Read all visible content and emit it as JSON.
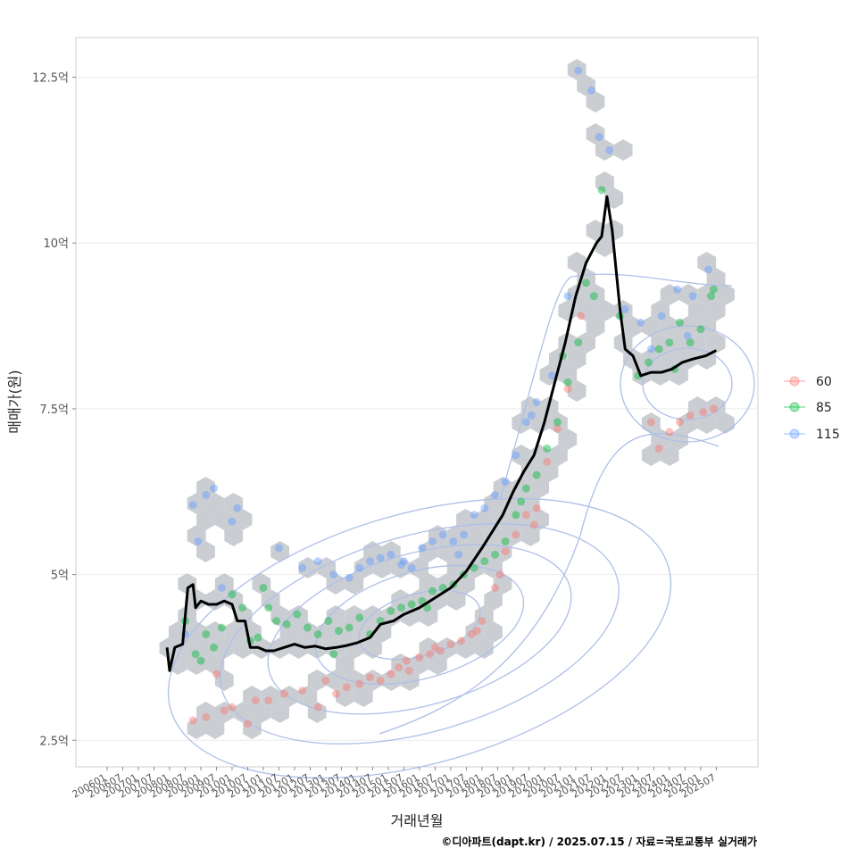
{
  "chart_data": {
    "type": "scatter",
    "xlabel": "거래년월",
    "ylabel": "매매가(원)",
    "caption": "©디아파트(dapt.kr) / 2025.07.15 / 자료=국토교통부 실거래가",
    "x_ticks": [
      "200601",
      "200607",
      "200701",
      "200707",
      "200801",
      "200807",
      "200901",
      "200907",
      "201001",
      "201007",
      "201101",
      "201107",
      "201201",
      "201207",
      "201301",
      "201307",
      "201401",
      "201407",
      "201501",
      "201507",
      "201601",
      "201607",
      "201701",
      "201707",
      "201801",
      "201807",
      "201901",
      "201907",
      "202001",
      "202007",
      "202101",
      "202107",
      "202201",
      "202207",
      "202301",
      "202307",
      "202401",
      "202407",
      "202501",
      "202507"
    ],
    "y_ticks": [
      {
        "value": 2.5,
        "label": "2.5억"
      },
      {
        "value": 5,
        "label": "5억"
      },
      {
        "value": 7.5,
        "label": "7.5억"
      },
      {
        "value": 10,
        "label": "10억"
      },
      {
        "value": 12.5,
        "label": "12.5억"
      }
    ],
    "ylim": [
      2.1,
      13.1
    ],
    "xlim": [
      "2005-01",
      "2026-11"
    ],
    "grid": true,
    "legend": {
      "position": "right",
      "entries": [
        {
          "name": "60",
          "color": "#F8766D"
        },
        {
          "name": "85",
          "color": "#00BA38"
        },
        {
          "name": "115",
          "color": "#619CFF"
        }
      ]
    },
    "layers": [
      "hexbin density (gray)",
      "2D density contours (blue)",
      "transactions by area",
      "trend line (black)"
    ],
    "trend_line": [
      [
        "2007-12",
        3.9
      ],
      [
        "2008-01",
        3.55
      ],
      [
        "2008-03",
        3.9
      ],
      [
        "2008-06",
        3.95
      ],
      [
        "2008-08",
        4.8
      ],
      [
        "2008-10",
        4.85
      ],
      [
        "2008-11",
        4.5
      ],
      [
        "2009-01",
        4.6
      ],
      [
        "2009-04",
        4.55
      ],
      [
        "2009-07",
        4.55
      ],
      [
        "2009-10",
        4.6
      ],
      [
        "2010-01",
        4.55
      ],
      [
        "2010-03",
        4.3
      ],
      [
        "2010-06",
        4.3
      ],
      [
        "2010-08",
        3.9
      ],
      [
        "2010-11",
        3.9
      ],
      [
        "2011-02",
        3.85
      ],
      [
        "2011-05",
        3.85
      ],
      [
        "2011-09",
        3.9
      ],
      [
        "2012-01",
        3.95
      ],
      [
        "2012-05",
        3.9
      ],
      [
        "2012-09",
        3.92
      ],
      [
        "2013-01",
        3.88
      ],
      [
        "2013-05",
        3.9
      ],
      [
        "2013-09",
        3.93
      ],
      [
        "2014-01",
        3.97
      ],
      [
        "2014-06",
        4.05
      ],
      [
        "2014-10",
        4.25
      ],
      [
        "2015-03",
        4.3
      ],
      [
        "2015-07",
        4.4
      ],
      [
        "2016-01",
        4.5
      ],
      [
        "2016-07",
        4.65
      ],
      [
        "2017-01",
        4.8
      ],
      [
        "2017-07",
        5.05
      ],
      [
        "2018-01",
        5.4
      ],
      [
        "2018-05",
        5.65
      ],
      [
        "2018-09",
        5.9
      ],
      [
        "2019-01",
        6.25
      ],
      [
        "2019-05",
        6.55
      ],
      [
        "2019-09",
        6.8
      ],
      [
        "2020-01",
        7.3
      ],
      [
        "2020-05",
        7.9
      ],
      [
        "2020-09",
        8.5
      ],
      [
        "2021-01",
        9.2
      ],
      [
        "2021-05",
        9.7
      ],
      [
        "2021-09",
        10.0
      ],
      [
        "2021-11",
        10.1
      ],
      [
        "2022-01",
        10.7
      ],
      [
        "2022-03",
        10.2
      ],
      [
        "2022-06",
        9.0
      ],
      [
        "2022-08",
        8.4
      ],
      [
        "2022-11",
        8.3
      ],
      [
        "2023-02",
        8.0
      ],
      [
        "2023-06",
        8.05
      ],
      [
        "2023-10",
        8.05
      ],
      [
        "2024-02",
        8.1
      ],
      [
        "2024-06",
        8.2
      ],
      [
        "2024-10",
        8.25
      ],
      [
        "2025-03",
        8.3
      ],
      [
        "2025-07",
        8.38
      ]
    ],
    "series": [
      {
        "name": "60",
        "x": [
          "2009-03",
          "2009-07",
          "2010-01",
          "2010-07",
          "2011-03",
          "2011-09",
          "2012-04",
          "2012-10",
          "2013-05",
          "2013-09",
          "2014-02",
          "2014-06",
          "2014-10",
          "2015-02",
          "2015-05",
          "2015-09",
          "2016-01",
          "2016-05",
          "2016-09",
          "2017-01",
          "2017-05",
          "2017-09",
          "2018-01",
          "2018-06",
          "2018-10",
          "2019-02",
          "2019-06",
          "2019-10",
          "2020-02",
          "2020-06",
          "2020-10",
          "2021-03",
          "2023-06",
          "2023-09",
          "2024-01",
          "2024-05",
          "2024-09",
          "2025-02",
          "2025-06",
          "2008-10",
          "2009-10",
          "2010-10",
          "2013-01",
          "2015-08",
          "2016-07",
          "2017-11",
          "2018-08",
          "2019-09"
        ],
        "y": [
          2.85,
          3.5,
          3.0,
          2.75,
          3.1,
          3.2,
          3.25,
          3.0,
          3.2,
          3.3,
          3.35,
          3.45,
          3.4,
          3.5,
          3.6,
          3.55,
          3.75,
          3.8,
          3.85,
          3.95,
          4.0,
          4.1,
          4.3,
          4.8,
          5.35,
          5.6,
          5.9,
          6.0,
          6.7,
          7.2,
          7.8,
          8.9,
          7.3,
          6.9,
          7.15,
          7.3,
          7.4,
          7.45,
          7.5,
          2.8,
          2.95,
          3.1,
          3.4,
          3.7,
          3.9,
          4.15,
          5.0,
          5.75
        ]
      },
      {
        "name": "85",
        "x": [
          "2008-07",
          "2008-11",
          "2009-03",
          "2009-06",
          "2009-09",
          "2010-01",
          "2010-05",
          "2010-08",
          "2010-11",
          "2011-03",
          "2011-06",
          "2011-10",
          "2012-02",
          "2012-06",
          "2012-10",
          "2013-02",
          "2013-06",
          "2013-10",
          "2014-02",
          "2014-06",
          "2014-10",
          "2015-02",
          "2015-06",
          "2015-10",
          "2016-02",
          "2016-06",
          "2016-10",
          "2017-02",
          "2017-06",
          "2017-10",
          "2018-02",
          "2018-06",
          "2018-10",
          "2019-02",
          "2019-06",
          "2019-10",
          "2020-02",
          "2020-06",
          "2020-10",
          "2021-02",
          "2021-05",
          "2021-08",
          "2021-11",
          "2022-06",
          "2023-01",
          "2023-05",
          "2023-09",
          "2024-01",
          "2024-05",
          "2024-09",
          "2025-01",
          "2025-05",
          "2009-01",
          "2011-01",
          "2013-04",
          "2016-04",
          "2019-04",
          "2020-08",
          "2024-03",
          "2025-06"
        ],
        "y": [
          4.3,
          3.8,
          4.1,
          3.9,
          4.2,
          4.7,
          4.5,
          4.0,
          4.05,
          4.5,
          4.3,
          4.25,
          4.4,
          4.2,
          4.1,
          4.3,
          4.15,
          4.2,
          4.35,
          4.1,
          4.3,
          4.45,
          4.5,
          4.55,
          4.6,
          4.75,
          4.8,
          4.85,
          5.0,
          5.1,
          5.2,
          5.3,
          5.5,
          5.9,
          6.3,
          6.5,
          6.9,
          7.3,
          7.9,
          8.5,
          9.4,
          9.2,
          10.8,
          8.9,
          8.0,
          8.2,
          8.4,
          8.5,
          8.8,
          8.5,
          8.7,
          9.2,
          3.7,
          4.8,
          3.8,
          4.5,
          6.1,
          8.3,
          8.1,
          9.3
        ]
      },
      {
        "name": "115",
        "x": [
          "2008-07",
          "2008-10",
          "2008-12",
          "2009-03",
          "2009-06",
          "2010-01",
          "2010-03",
          "2011-07",
          "2012-04",
          "2012-10",
          "2013-04",
          "2013-10",
          "2014-02",
          "2014-06",
          "2014-10",
          "2015-02",
          "2015-06",
          "2015-10",
          "2016-02",
          "2016-06",
          "2016-10",
          "2017-02",
          "2017-06",
          "2017-10",
          "2018-02",
          "2018-06",
          "2018-10",
          "2019-02",
          "2019-06",
          "2019-10",
          "2020-04",
          "2020-10",
          "2021-02",
          "2021-07",
          "2021-10",
          "2022-02",
          "2022-08",
          "2023-02",
          "2023-06",
          "2023-10",
          "2024-04",
          "2024-10",
          "2025-04",
          "2009-09",
          "2015-07",
          "2017-04",
          "2019-08",
          "2024-08"
        ],
        "y": [
          4.1,
          6.05,
          5.5,
          6.2,
          6.3,
          5.8,
          6.0,
          5.4,
          5.1,
          5.2,
          5.0,
          4.95,
          5.1,
          5.2,
          5.25,
          5.3,
          5.15,
          5.1,
          5.4,
          5.5,
          5.6,
          5.5,
          5.6,
          5.9,
          6.0,
          6.2,
          6.4,
          6.8,
          7.3,
          7.6,
          8.0,
          9.2,
          12.6,
          12.3,
          11.6,
          11.4,
          9.0,
          8.8,
          8.4,
          8.9,
          9.3,
          9.2,
          9.6,
          4.8,
          5.2,
          5.3,
          7.4,
          8.6
        ]
      }
    ]
  }
}
